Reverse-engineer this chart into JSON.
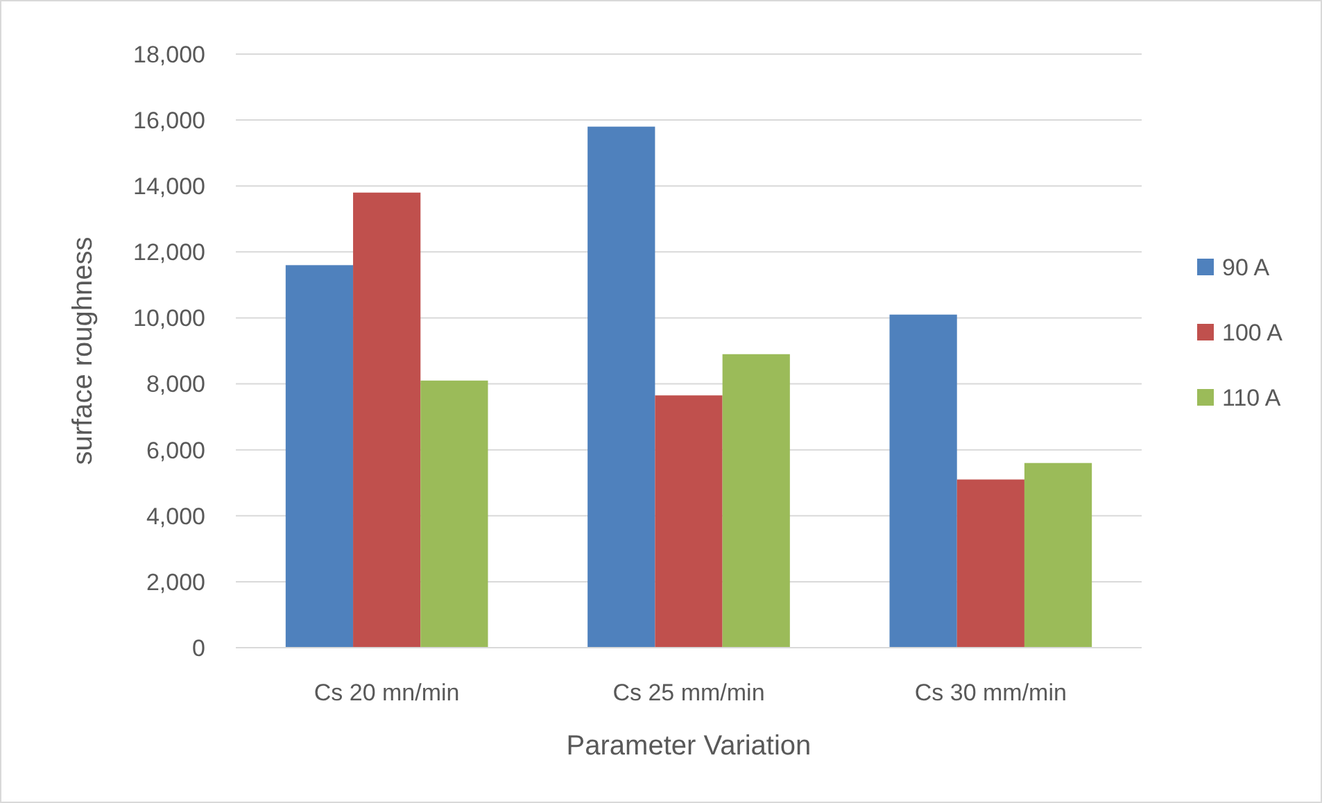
{
  "chart_data": {
    "type": "bar",
    "xlabel": "Parameter Variation",
    "ylabel": "surface roughness",
    "categories": [
      "Cs 20 mn/min",
      "Cs 25 mm/min",
      "Cs 30 mm/min"
    ],
    "series": [
      {
        "name": "90 A",
        "color": "#4f81bd",
        "values": [
          11600,
          15800,
          10100
        ]
      },
      {
        "name": "100 A",
        "color": "#c0504d",
        "values": [
          13800,
          7650,
          5100
        ]
      },
      {
        "name": "110 A",
        "color": "#9bbb59",
        "values": [
          8100,
          8900,
          5600
        ]
      }
    ],
    "ylim": [
      0,
      18000
    ],
    "yticks": [
      {
        "value": 0,
        "label": "0"
      },
      {
        "value": 2000,
        "label": "2,000"
      },
      {
        "value": 4000,
        "label": "4,000"
      },
      {
        "value": 6000,
        "label": "6,000"
      },
      {
        "value": 8000,
        "label": "8,000"
      },
      {
        "value": 10000,
        "label": "10,000"
      },
      {
        "value": 12000,
        "label": "12,000"
      },
      {
        "value": 14000,
        "label": "14,000"
      },
      {
        "value": 16000,
        "label": "16,000"
      },
      {
        "value": 18000,
        "label": "18,000"
      }
    ],
    "grid": "y",
    "legend": "right"
  }
}
